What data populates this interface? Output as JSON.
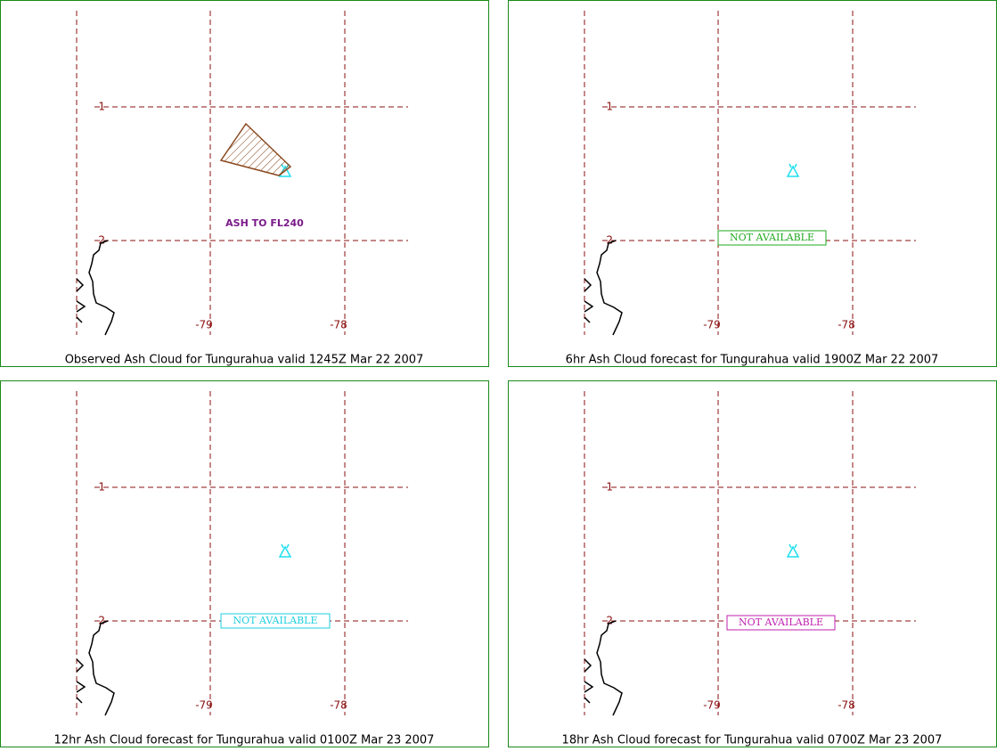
{
  "grid": {
    "lat_labels": [
      "-1",
      "-2"
    ],
    "lon_labels": [
      "-79",
      "-78"
    ]
  },
  "panels": [
    {
      "caption": "Observed Ash Cloud for Tungurahua valid 1245Z Mar 22 2007",
      "annotation": "ASH TO FL240"
    },
    {
      "caption": "6hr Ash Cloud forecast for Tungurahua valid 1900Z Mar 22 2007",
      "annotation": "NOT AVAILABLE"
    },
    {
      "caption": "12hr Ash Cloud forecast for Tungurahua valid 0100Z Mar 23 2007",
      "annotation": "NOT AVAILABLE"
    },
    {
      "caption": "18hr Ash Cloud forecast for Tungurahua valid 0700Z Mar 23 2007",
      "annotation": "NOT AVAILABLE"
    }
  ]
}
